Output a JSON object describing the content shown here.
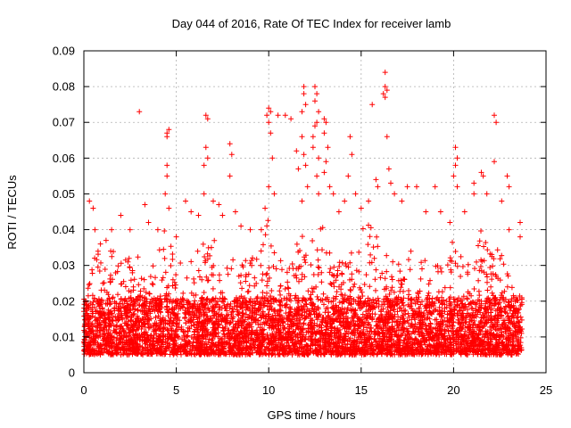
{
  "chart_data": {
    "type": "scatter",
    "title": "Day 044 of 2016, Rate Of TEC Index for receiver lamb",
    "xlabel": "GPS time / hours",
    "ylabel": "ROTI / TECUs",
    "xlim": [
      0,
      25
    ],
    "ylim": [
      0,
      0.09
    ],
    "xticks": [
      0,
      5,
      10,
      15,
      20,
      25
    ],
    "xtick_labels": [
      "0",
      "5",
      "10",
      "15",
      "20",
      "25"
    ],
    "yticks": [
      0,
      0.01,
      0.02,
      0.03,
      0.04,
      0.05,
      0.06,
      0.07,
      0.08,
      0.09
    ],
    "ytick_labels": [
      "0",
      "0.01",
      "0.02",
      "0.03",
      "0.04",
      "0.05",
      "0.06",
      "0.07",
      "0.08",
      "0.09"
    ],
    "grid": true,
    "marker": "+",
    "color": "#ff0000",
    "series": [
      {
        "name": "ROTI",
        "points": [
          [
            0.3,
            0.048
          ],
          [
            0.5,
            0.046
          ],
          [
            0.6,
            0.04
          ],
          [
            0.9,
            0.036
          ],
          [
            1.2,
            0.037
          ],
          [
            1.5,
            0.04
          ],
          [
            2.0,
            0.044
          ],
          [
            2.5,
            0.04
          ],
          [
            3.0,
            0.073
          ],
          [
            3.3,
            0.047
          ],
          [
            3.5,
            0.042
          ],
          [
            4.0,
            0.04
          ],
          [
            4.5,
            0.067
          ],
          [
            4.5,
            0.066
          ],
          [
            4.6,
            0.068
          ],
          [
            4.5,
            0.058
          ],
          [
            4.5,
            0.055
          ],
          [
            4.4,
            0.05
          ],
          [
            4.6,
            0.046
          ],
          [
            5.0,
            0.038
          ],
          [
            5.5,
            0.048
          ],
          [
            5.8,
            0.045
          ],
          [
            6.2,
            0.044
          ],
          [
            6.6,
            0.072
          ],
          [
            6.7,
            0.071
          ],
          [
            6.6,
            0.063
          ],
          [
            6.7,
            0.06
          ],
          [
            6.5,
            0.058
          ],
          [
            6.5,
            0.05
          ],
          [
            7.0,
            0.048
          ],
          [
            7.3,
            0.047
          ],
          [
            7.5,
            0.044
          ],
          [
            7.9,
            0.064
          ],
          [
            8.0,
            0.061
          ],
          [
            7.9,
            0.055
          ],
          [
            8.2,
            0.045
          ],
          [
            8.5,
            0.041
          ],
          [
            9.0,
            0.04
          ],
          [
            9.6,
            0.04
          ],
          [
            9.8,
            0.046
          ],
          [
            10.0,
            0.074
          ],
          [
            10.1,
            0.073
          ],
          [
            9.9,
            0.072
          ],
          [
            10.0,
            0.07
          ],
          [
            10.1,
            0.067
          ],
          [
            10.2,
            0.06
          ],
          [
            10.0,
            0.052
          ],
          [
            10.3,
            0.05
          ],
          [
            10.5,
            0.072
          ],
          [
            10.9,
            0.072
          ],
          [
            11.2,
            0.071
          ],
          [
            11.5,
            0.062
          ],
          [
            11.6,
            0.057
          ],
          [
            11.8,
            0.048
          ],
          [
            11.9,
            0.08
          ],
          [
            11.9,
            0.078
          ],
          [
            12.0,
            0.075
          ],
          [
            11.8,
            0.073
          ],
          [
            11.8,
            0.066
          ],
          [
            11.9,
            0.061
          ],
          [
            12.0,
            0.058
          ],
          [
            12.1,
            0.052
          ],
          [
            12.5,
            0.08
          ],
          [
            12.6,
            0.078
          ],
          [
            12.5,
            0.076
          ],
          [
            12.7,
            0.073
          ],
          [
            12.6,
            0.07
          ],
          [
            12.5,
            0.069
          ],
          [
            12.4,
            0.066
          ],
          [
            12.4,
            0.063
          ],
          [
            12.7,
            0.06
          ],
          [
            12.6,
            0.055
          ],
          [
            12.7,
            0.05
          ],
          [
            13.0,
            0.071
          ],
          [
            13.1,
            0.07
          ],
          [
            13.0,
            0.067
          ],
          [
            13.2,
            0.063
          ],
          [
            13.1,
            0.059
          ],
          [
            13.0,
            0.056
          ],
          [
            13.3,
            0.052
          ],
          [
            13.5,
            0.05
          ],
          [
            13.8,
            0.045
          ],
          [
            14.1,
            0.048
          ],
          [
            14.4,
            0.066
          ],
          [
            14.5,
            0.061
          ],
          [
            14.3,
            0.055
          ],
          [
            14.7,
            0.05
          ],
          [
            15.0,
            0.046
          ],
          [
            15.4,
            0.048
          ],
          [
            15.6,
            0.075
          ],
          [
            15.8,
            0.054
          ],
          [
            15.9,
            0.052
          ],
          [
            16.3,
            0.084
          ],
          [
            16.3,
            0.08
          ],
          [
            16.4,
            0.079
          ],
          [
            16.2,
            0.078
          ],
          [
            16.3,
            0.077
          ],
          [
            16.4,
            0.066
          ],
          [
            16.5,
            0.057
          ],
          [
            16.6,
            0.053
          ],
          [
            16.8,
            0.05
          ],
          [
            17.2,
            0.048
          ],
          [
            17.5,
            0.052
          ],
          [
            18.0,
            0.052
          ],
          [
            18.5,
            0.045
          ],
          [
            19.0,
            0.052
          ],
          [
            19.3,
            0.045
          ],
          [
            19.8,
            0.042
          ],
          [
            20.1,
            0.063
          ],
          [
            20.2,
            0.06
          ],
          [
            20.1,
            0.058
          ],
          [
            20.0,
            0.055
          ],
          [
            20.2,
            0.052
          ],
          [
            20.6,
            0.045
          ],
          [
            21.1,
            0.053
          ],
          [
            21.1,
            0.05
          ],
          [
            21.5,
            0.056
          ],
          [
            21.6,
            0.055
          ],
          [
            21.8,
            0.05
          ],
          [
            22.2,
            0.072
          ],
          [
            22.3,
            0.07
          ],
          [
            22.2,
            0.059
          ],
          [
            22.6,
            0.048
          ],
          [
            22.9,
            0.055
          ],
          [
            23.0,
            0.052
          ],
          [
            23.0,
            0.04
          ],
          [
            23.6,
            0.042
          ],
          [
            23.6,
            0.038
          ]
        ],
        "dense_band": {
          "x_start": 0.0,
          "x_end": 23.7,
          "base_min": 0.002,
          "base_max": 0.018,
          "upper_envelope_samples": [
            [
              0.0,
              0.012
            ],
            [
              0.3,
              0.03
            ],
            [
              0.7,
              0.038
            ],
            [
              1.0,
              0.03
            ],
            [
              1.5,
              0.036
            ],
            [
              2.0,
              0.034
            ],
            [
              2.5,
              0.032
            ],
            [
              3.0,
              0.034
            ],
            [
              3.5,
              0.036
            ],
            [
              4.0,
              0.034
            ],
            [
              4.5,
              0.042
            ],
            [
              5.0,
              0.03
            ],
            [
              5.5,
              0.036
            ],
            [
              6.0,
              0.034
            ],
            [
              6.5,
              0.04
            ],
            [
              7.0,
              0.038
            ],
            [
              7.5,
              0.034
            ],
            [
              8.0,
              0.034
            ],
            [
              8.5,
              0.034
            ],
            [
              9.0,
              0.032
            ],
            [
              9.5,
              0.034
            ],
            [
              10.0,
              0.044
            ],
            [
              10.5,
              0.036
            ],
            [
              11.0,
              0.03
            ],
            [
              11.5,
              0.036
            ],
            [
              12.0,
              0.04
            ],
            [
              12.5,
              0.044
            ],
            [
              13.0,
              0.042
            ],
            [
              13.5,
              0.03
            ],
            [
              14.0,
              0.032
            ],
            [
              14.5,
              0.034
            ],
            [
              15.0,
              0.04
            ],
            [
              15.5,
              0.042
            ],
            [
              16.0,
              0.036
            ],
            [
              16.5,
              0.034
            ],
            [
              17.0,
              0.032
            ],
            [
              17.5,
              0.034
            ],
            [
              18.0,
              0.034
            ],
            [
              18.5,
              0.032
            ],
            [
              19.0,
              0.032
            ],
            [
              19.5,
              0.03
            ],
            [
              20.0,
              0.04
            ],
            [
              20.5,
              0.032
            ],
            [
              21.0,
              0.032
            ],
            [
              21.5,
              0.04
            ],
            [
              22.0,
              0.036
            ],
            [
              22.5,
              0.034
            ],
            [
              23.0,
              0.032
            ],
            [
              23.5,
              0.024
            ],
            [
              23.7,
              0.02
            ]
          ]
        }
      }
    ]
  }
}
